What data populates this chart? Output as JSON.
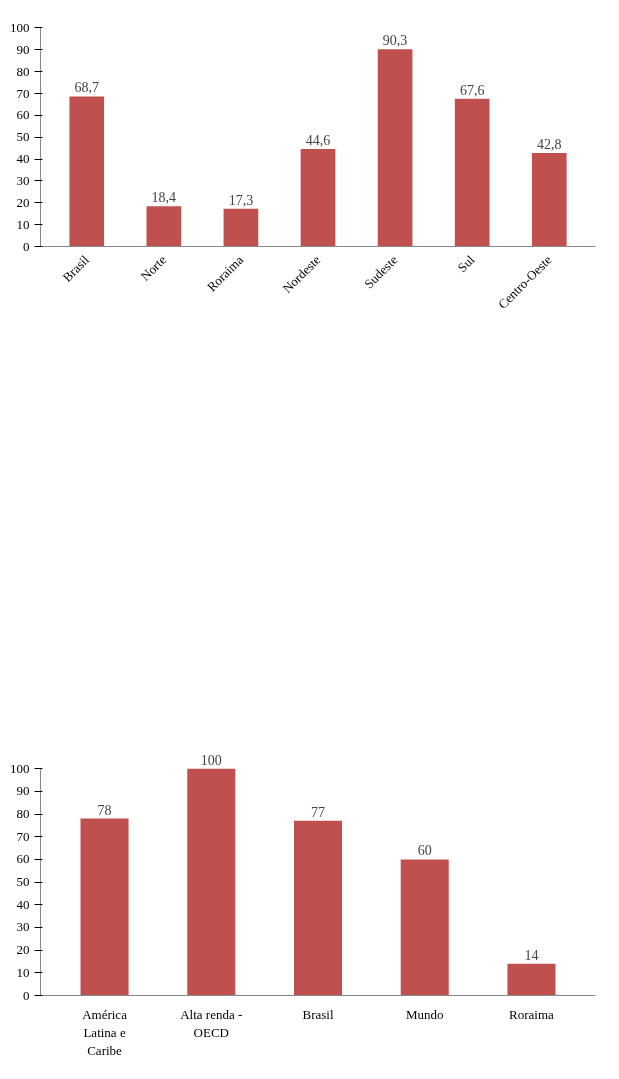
{
  "chart_data": [
    {
      "type": "bar",
      "categories": [
        "Brasil",
        "Norte",
        "Roraima",
        "Nordeste",
        "Sudeste",
        "Sul",
        "Centro-Oeste"
      ],
      "values": [
        68.7,
        18.4,
        17.3,
        44.6,
        90.3,
        67.6,
        42.8
      ],
      "value_labels": [
        "68,7",
        "18,4",
        "17,3",
        "44,6",
        "90,3",
        "67,6",
        "42,8"
      ],
      "color": "#c0504d",
      "ylim": [
        0,
        100
      ],
      "yticks": [
        0,
        10,
        20,
        30,
        40,
        50,
        60,
        70,
        80,
        90,
        100
      ],
      "grid": false
    },
    {
      "type": "bar",
      "categories": [
        "América\nLatina e\nCaribe",
        "Alta renda -\nOECD",
        "Brasil",
        "Mundo",
        "Roraima"
      ],
      "values": [
        78,
        100,
        77,
        60,
        14
      ],
      "data_labels": true,
      "color": "#c0504d",
      "ylim": [
        0,
        100
      ],
      "yticks": [
        0,
        10,
        20,
        30,
        40,
        50,
        60,
        70,
        80,
        90,
        100
      ],
      "grid": false
    }
  ]
}
